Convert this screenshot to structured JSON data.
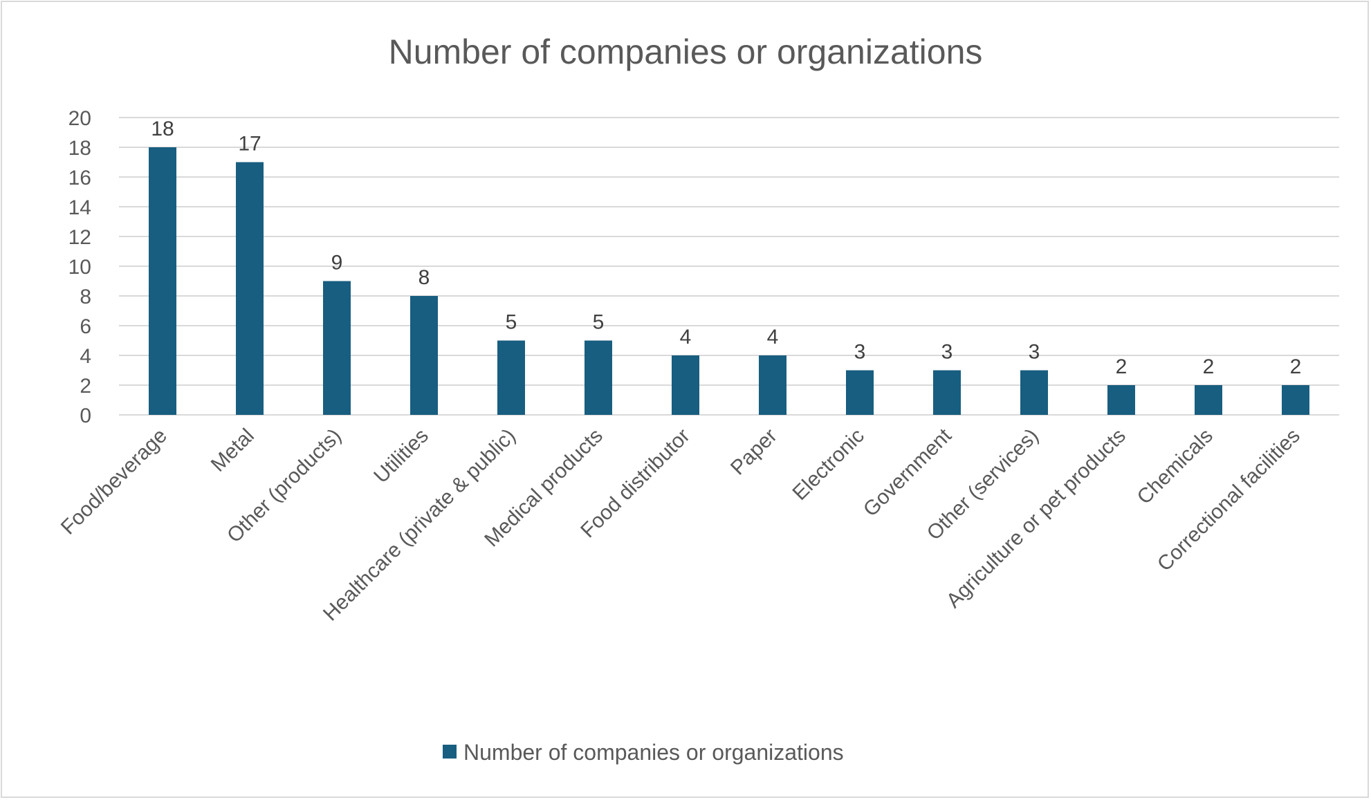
{
  "chart_data": {
    "type": "bar",
    "title": "Number of companies or organizations",
    "xlabel": "",
    "ylabel": "",
    "ylim": [
      0,
      20
    ],
    "yticks": [
      0,
      2,
      4,
      6,
      8,
      10,
      12,
      14,
      16,
      18,
      20
    ],
    "grid": true,
    "legend_position": "bottom",
    "categories": [
      "Food/beverage",
      "Metal",
      "Other (products)",
      "Utilities",
      "Healthcare (private & public)",
      "Medical products",
      "Food distributor",
      "Paper",
      "Electronic",
      "Government",
      "Other (services)",
      "Agriculture or pet products",
      "Chemicals",
      "Correctional facilities"
    ],
    "series": [
      {
        "name": "Number of companies or organizations",
        "color": "#185e80",
        "values": [
          18,
          17,
          9,
          8,
          5,
          5,
          4,
          4,
          3,
          3,
          3,
          2,
          2,
          2
        ]
      }
    ]
  }
}
